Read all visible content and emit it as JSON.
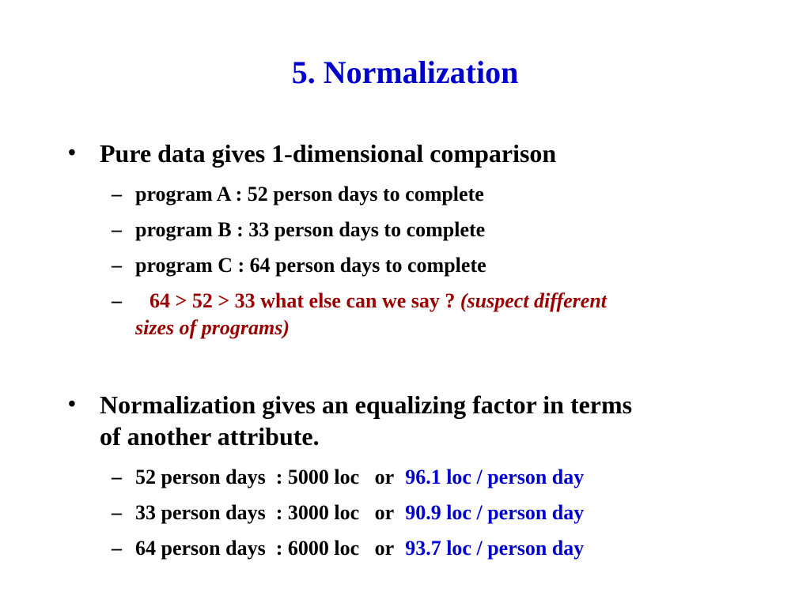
{
  "slide": {
    "title": "5. Normalization",
    "bullet_marker": "•",
    "dash_marker": "–",
    "section1": {
      "heading": "Pure data gives 1-dimensional comparison",
      "items": [
        "program A : 52 person days to complete",
        "program B : 33 person days to complete",
        "program C : 64 person days to complete"
      ],
      "comparison": {
        "text": "64 > 52 > 33  what else can we say ?",
        "italic_note_line1": "(suspect different",
        "italic_note_line2": "sizes of programs)"
      }
    },
    "section2": {
      "heading_line1": "Normalization gives an equalizing factor in terms",
      "heading_line2": "of another attribute.",
      "rows": [
        {
          "text": "52 person days  : 5000 loc   or ",
          "rate": "96.1 loc / person day"
        },
        {
          "text": "33 person days  : 3000 loc   or ",
          "rate": "90.9 loc / person day"
        },
        {
          "text": "64 person days  : 6000 loc   or ",
          "rate": "93.7 loc / person day"
        }
      ]
    },
    "colors": {
      "title": "#0000cc",
      "accent_red": "#990000",
      "accent_blue": "#0000cc"
    }
  }
}
